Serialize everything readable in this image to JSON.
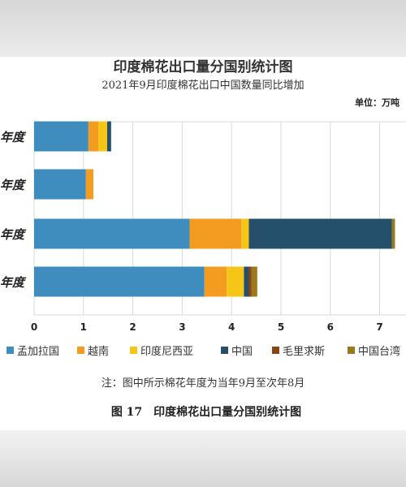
{
  "chart_data": {
    "type": "bar",
    "orientation": "horizontal",
    "stacked": true,
    "title": "印度棉花出口量分国别统计图",
    "subtitle": "2021年9月印度棉花出口中国数量同比增加",
    "unit": "单位：万吨",
    "categories": [
      "年度",
      "年度",
      "年度",
      "年度"
    ],
    "xlim": [
      0,
      7.5
    ],
    "xticks": [
      0,
      1,
      2,
      3,
      4,
      5,
      6,
      7
    ],
    "grid": true,
    "legend_position": "bottom",
    "series": [
      {
        "name": "孟加拉国",
        "color": "#3f8dbf",
        "values": [
          1.1,
          1.05,
          3.15,
          3.45
        ]
      },
      {
        "name": "越南",
        "color": "#f39c1f",
        "values": [
          0.2,
          0.15,
          1.05,
          0.45
        ]
      },
      {
        "name": "印度尼西亚",
        "color": "#f5c518",
        "values": [
          0.18,
          0.0,
          0.15,
          0.35
        ]
      },
      {
        "name": "中国",
        "color": "#24506b",
        "values": [
          0.08,
          0.0,
          2.9,
          0.1
        ]
      },
      {
        "name": "毛里求斯",
        "color": "#8b4513",
        "values": [
          0.0,
          0.0,
          0.0,
          0.05
        ]
      },
      {
        "name": "中国台湾",
        "color": "#9c7a1c",
        "values": [
          0.0,
          0.0,
          0.06,
          0.12
        ]
      }
    ]
  },
  "note": "注：图中所示棉花年度为当年9月至次年8月",
  "caption": "图 17　印度棉花出口量分国别统计图"
}
